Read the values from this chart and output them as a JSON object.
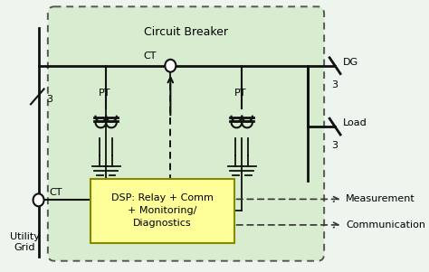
{
  "background_color": "#eef5ee",
  "title": "Circuit Breaker",
  "figsize": [
    4.74,
    3.01
  ],
  "dpi": 100,
  "line_color": "#111111",
  "dashed_color": "#333333",
  "outer_box_fc": "#d8ecd0",
  "dsp_text": "DSP: Relay + Comm\n+ Monitoring/\nDiagnostics",
  "labels": {
    "utility_grid": "Utility\nGrid",
    "ct_top": "CT",
    "ct_bottom": "CT",
    "pt_left": "PT",
    "pt_right": "PT",
    "dg": "DG",
    "load": "Load",
    "measurement": "Measurement",
    "communication": "Communication",
    "three_left": "3",
    "three_dg": "3",
    "three_load": "3"
  }
}
